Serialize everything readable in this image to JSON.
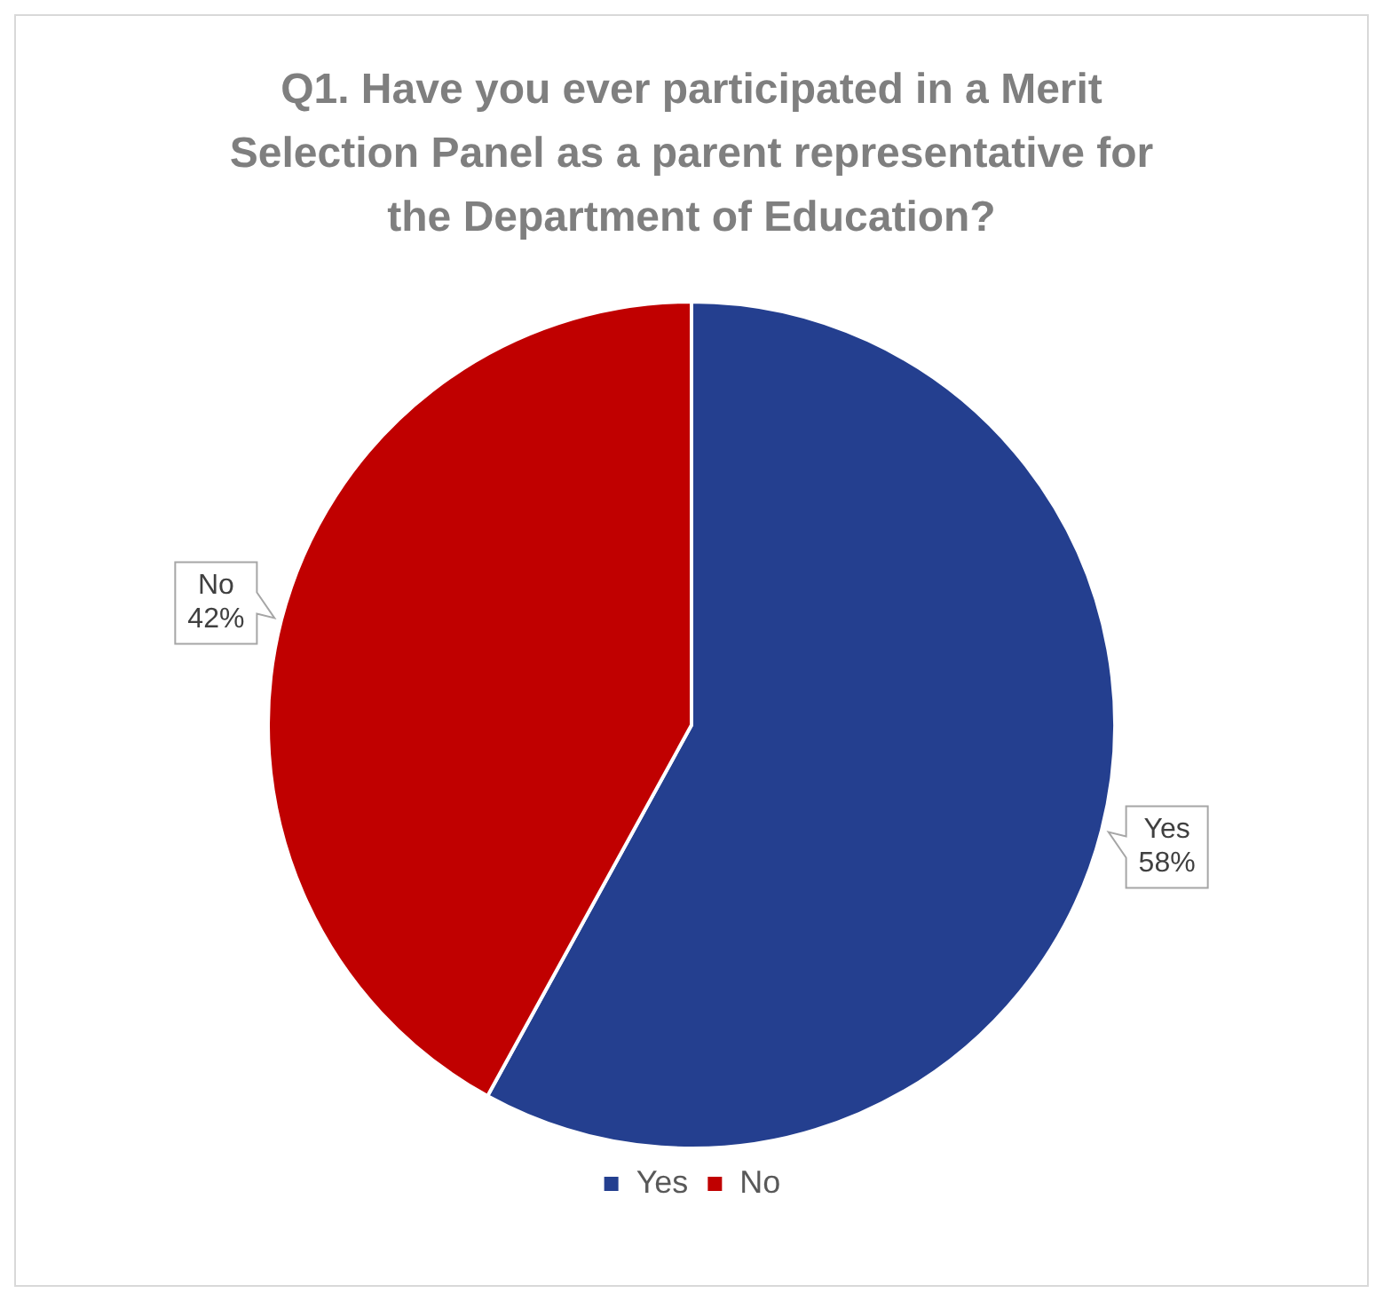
{
  "chart_data": {
    "type": "pie",
    "title": "Q1. Have you ever participated in a Merit Selection Panel as a parent representative for the Department of Education?",
    "categories": [
      "Yes",
      "No"
    ],
    "values": [
      58,
      42
    ],
    "colors": [
      "#243f8f",
      "#c00000"
    ],
    "value_labels": [
      "58%",
      "42%"
    ],
    "legend": "bottom"
  }
}
